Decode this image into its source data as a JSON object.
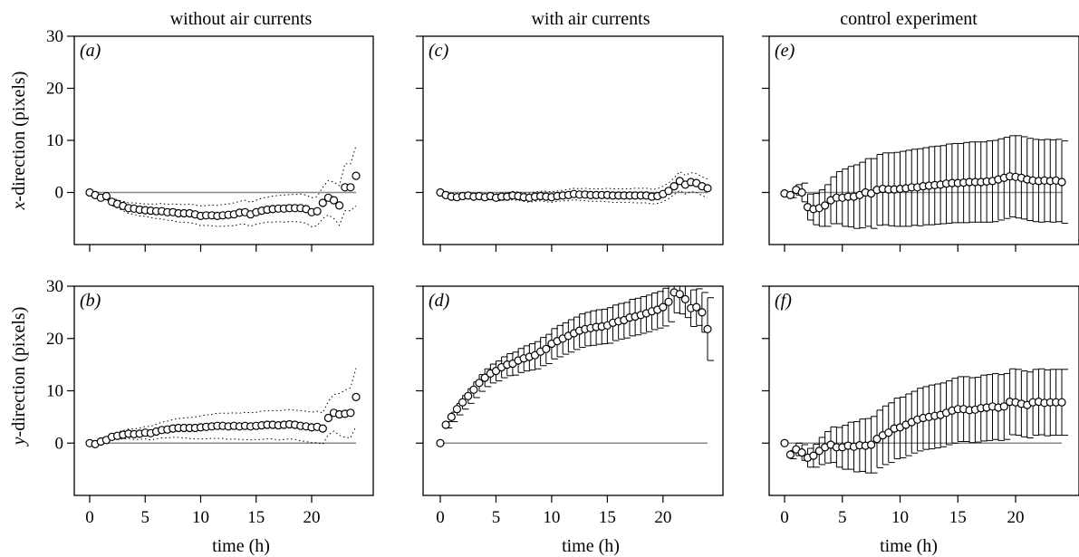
{
  "column_titles": [
    "without air currents",
    "with air currents",
    "control experiment"
  ],
  "y_axis_titles": {
    "top_italic": "x",
    "top_rest": "-direction (pixels)",
    "bottom_italic": "y",
    "bottom_rest": "-direction (pixels)"
  },
  "x_axis_title": "time (h)",
  "colors": {
    "points": "#000000",
    "zero_line": "#888888",
    "frame": "#000000"
  },
  "chart_data": [
    {
      "type": "scatter",
      "panel": "a",
      "row": 0,
      "col": 0,
      "xlim": [
        0,
        24
      ],
      "ylim": [
        -10,
        30
      ],
      "zero_line": true,
      "error_style": "dotted",
      "x": [
        0,
        0.5,
        1,
        1.5,
        2,
        2.5,
        3,
        3.5,
        4,
        4.5,
        5,
        5.5,
        6,
        6.5,
        7,
        7.5,
        8,
        8.5,
        9,
        9.5,
        10,
        10.5,
        11,
        11.5,
        12,
        12.5,
        13,
        13.5,
        14,
        14.5,
        15,
        15.5,
        16,
        16.5,
        17,
        17.5,
        18,
        18.5,
        19,
        19.5,
        20,
        20.5,
        21,
        21.5,
        22,
        22.5,
        23,
        23.5,
        24
      ],
      "y": [
        0,
        -0.5,
        -1,
        -0.7,
        -1.8,
        -2.2,
        -2.6,
        -3,
        -3.1,
        -3.3,
        -3.4,
        -3.5,
        -3.6,
        -3.6,
        -3.8,
        -3.8,
        -4,
        -4,
        -4,
        -4.2,
        -4.5,
        -4.4,
        -4.4,
        -4.5,
        -4.4,
        -4.3,
        -4.2,
        -3.9,
        -3.8,
        -4.2,
        -3.8,
        -3.5,
        -3.3,
        -3.2,
        -3.1,
        -3.1,
        -3,
        -3,
        -3,
        -3.2,
        -3.8,
        -3.6,
        -2,
        -1,
        -1.5,
        -2.5,
        1,
        1,
        3.2
      ],
      "err": [
        0,
        0.3,
        0.4,
        0.5,
        0.7,
        0.8,
        0.9,
        1,
        1.1,
        1.2,
        1.2,
        1.3,
        1.4,
        1.5,
        1.5,
        1.6,
        1.7,
        1.7,
        1.8,
        1.8,
        1.9,
        1.9,
        2,
        2,
        2.1,
        2.1,
        2.2,
        2.2,
        2.3,
        2.3,
        2.3,
        2.4,
        2.4,
        2.5,
        2.5,
        2.6,
        2.6,
        2.6,
        2.7,
        2.7,
        2.8,
        2.8,
        3,
        3.3,
        3.5,
        3.8,
        4.5,
        4.5,
        5.8
      ]
    },
    {
      "type": "scatter",
      "panel": "b",
      "row": 1,
      "col": 0,
      "xlim": [
        0,
        24
      ],
      "ylim": [
        -10,
        30
      ],
      "zero_line": true,
      "error_style": "dotted",
      "x": [
        0,
        0.5,
        1,
        1.5,
        2,
        2.5,
        3,
        3.5,
        4,
        4.5,
        5,
        5.5,
        6,
        6.5,
        7,
        7.5,
        8,
        8.5,
        9,
        9.5,
        10,
        10.5,
        11,
        11.5,
        12,
        12.5,
        13,
        13.5,
        14,
        14.5,
        15,
        15.5,
        16,
        16.5,
        17,
        17.5,
        18,
        18.5,
        19,
        19.5,
        20,
        20.5,
        21,
        21.5,
        22,
        22.5,
        23,
        23.5,
        24
      ],
      "y": [
        0,
        -0.2,
        0.3,
        0.6,
        1.2,
        1.4,
        1.6,
        1.8,
        1.7,
        1.8,
        2,
        1.9,
        2.2,
        2.5,
        2.6,
        2.8,
        2.9,
        2.9,
        2.9,
        2.9,
        3,
        3.1,
        3.2,
        3.3,
        3.3,
        3.2,
        3.3,
        3.2,
        3.3,
        3.2,
        3.3,
        3.4,
        3.5,
        3.5,
        3.4,
        3.5,
        3.6,
        3.5,
        3.3,
        3.2,
        3,
        3.1,
        2.8,
        4.8,
        5.8,
        5.5,
        5.6,
        5.8,
        8.8
      ],
      "err": [
        0,
        0.3,
        0.4,
        0.5,
        0.6,
        0.7,
        0.8,
        0.9,
        1,
        1.1,
        1.2,
        1.3,
        1.4,
        1.5,
        1.6,
        1.7,
        1.8,
        1.9,
        2,
        2.1,
        2.2,
        2.3,
        2.3,
        2.4,
        2.4,
        2.5,
        2.5,
        2.5,
        2.6,
        2.6,
        2.6,
        2.7,
        2.7,
        2.7,
        2.8,
        2.8,
        2.8,
        2.8,
        2.9,
        2.9,
        2.9,
        3,
        3,
        3.2,
        3.5,
        4,
        4.5,
        4.8,
        5.5
      ]
    },
    {
      "type": "scatter",
      "panel": "c",
      "row": 0,
      "col": 1,
      "xlim": [
        0,
        24
      ],
      "ylim": [
        -10,
        30
      ],
      "zero_line": true,
      "error_style": "dotted",
      "x": [
        0,
        0.5,
        1,
        1.5,
        2,
        2.5,
        3,
        3.5,
        4,
        4.5,
        5,
        5.5,
        6,
        6.5,
        7,
        7.5,
        8,
        8.5,
        9,
        9.5,
        10,
        10.5,
        11,
        11.5,
        12,
        12.5,
        13,
        13.5,
        14,
        14.5,
        15,
        15.5,
        16,
        16.5,
        17,
        17.5,
        18,
        18.5,
        19,
        19.5,
        20,
        20.5,
        21,
        21.5,
        22,
        22.5,
        23,
        23.5,
        24
      ],
      "y": [
        0,
        -0.5,
        -0.8,
        -0.9,
        -0.7,
        -0.6,
        -0.8,
        -0.7,
        -0.9,
        -0.7,
        -1,
        -0.8,
        -0.8,
        -0.6,
        -0.7,
        -0.9,
        -1,
        -0.8,
        -0.7,
        -0.8,
        -0.9,
        -0.7,
        -0.6,
        -0.5,
        -0.3,
        -0.4,
        -0.4,
        -0.5,
        -0.5,
        -0.5,
        -0.5,
        -0.6,
        -0.6,
        -0.6,
        -0.6,
        -0.6,
        -0.6,
        -0.6,
        -0.8,
        -0.7,
        -0.3,
        0.3,
        1.2,
        2.2,
        1.5,
        2,
        1.8,
        1.2,
        0.8
      ],
      "err": [
        0,
        0.3,
        0.4,
        0.4,
        0.5,
        0.5,
        0.5,
        0.6,
        0.6,
        0.6,
        0.7,
        0.7,
        0.7,
        0.8,
        0.8,
        0.8,
        0.9,
        0.9,
        0.9,
        1,
        1,
        1,
        1,
        1.1,
        1.1,
        1.1,
        1.2,
        1.2,
        1.2,
        1.2,
        1.3,
        1.3,
        1.3,
        1.3,
        1.3,
        1.4,
        1.4,
        1.4,
        1.4,
        1.4,
        1.5,
        1.5,
        1.6,
        1.8,
        1.8,
        1.8,
        1.8,
        1.8,
        1.8
      ]
    },
    {
      "type": "scatter",
      "panel": "d",
      "row": 1,
      "col": 1,
      "xlim": [
        0,
        24
      ],
      "ylim": [
        -10,
        30
      ],
      "zero_line": true,
      "error_style": "whisker",
      "x": [
        0,
        0.5,
        1,
        1.5,
        2,
        2.5,
        3,
        3.5,
        4,
        4.5,
        5,
        5.5,
        6,
        6.5,
        7,
        7.5,
        8,
        8.5,
        9,
        9.5,
        10,
        10.5,
        11,
        11.5,
        12,
        12.5,
        13,
        13.5,
        14,
        14.5,
        15,
        15.5,
        16,
        16.5,
        17,
        17.5,
        18,
        18.5,
        19,
        19.5,
        20,
        20.5,
        21,
        21.5,
        22,
        22.5,
        23,
        23.5,
        24
      ],
      "y": [
        0,
        3.5,
        5,
        6.5,
        7.8,
        9,
        10.2,
        11.5,
        12.5,
        13.3,
        13.8,
        14.5,
        15,
        15.2,
        15.8,
        16.2,
        16.5,
        16.8,
        17.5,
        18,
        19,
        19.5,
        20,
        20.5,
        21,
        21.5,
        21.8,
        22,
        22.2,
        22.3,
        22.5,
        23,
        23.3,
        23.5,
        24,
        24.2,
        24.5,
        24.8,
        25.2,
        25.5,
        26,
        27,
        28.8,
        28.5,
        27.5,
        25.8,
        26,
        25,
        21.8
      ],
      "err": [
        0,
        0.6,
        0.9,
        1.1,
        1.3,
        1.4,
        1.5,
        1.6,
        1.7,
        1.8,
        1.9,
        2,
        2.1,
        2.2,
        2.3,
        2.4,
        2.5,
        2.6,
        2.7,
        2.8,
        2.9,
        3,
        3,
        3.1,
        3.1,
        3.2,
        3.2,
        3.3,
        3.3,
        3.3,
        3.4,
        3.4,
        3.4,
        3.4,
        3.5,
        3.5,
        3.5,
        3.5,
        3.5,
        3.5,
        3.6,
        3.8,
        3.9,
        3.8,
        3.5,
        3.5,
        3.5,
        3.8,
        6
      ]
    },
    {
      "type": "scatter",
      "panel": "e",
      "row": 0,
      "col": 2,
      "xlim": [
        0,
        24
      ],
      "ylim": [
        -10,
        30
      ],
      "zero_line": true,
      "error_style": "whisker",
      "x": [
        0,
        0.5,
        1,
        1.5,
        2,
        2.5,
        3,
        3.5,
        4,
        4.5,
        5,
        5.5,
        6,
        6.5,
        7,
        7.5,
        8,
        8.5,
        9,
        9.5,
        10,
        10.5,
        11,
        11.5,
        12,
        12.5,
        13,
        13.5,
        14,
        14.5,
        15,
        15.5,
        16,
        16.5,
        17,
        17.5,
        18,
        18.5,
        19,
        19.5,
        20,
        20.5,
        21,
        21.5,
        22,
        22.5,
        23,
        23.5,
        24
      ],
      "y": [
        -0.2,
        -0.5,
        0.5,
        0,
        -2.8,
        -3.2,
        -3,
        -2.5,
        -1.5,
        -1,
        -1,
        -0.8,
        -0.8,
        -0.5,
        0,
        -0.2,
        0.5,
        0.7,
        0.6,
        0.6,
        0.7,
        0.8,
        1,
        1,
        1.2,
        1.3,
        1.4,
        1.5,
        1.7,
        1.8,
        1.8,
        1.9,
        2,
        2,
        2,
        2.1,
        2.2,
        2.5,
        2.8,
        3.1,
        3,
        2.8,
        2.5,
        2.3,
        2.2,
        2.3,
        2.2,
        2.3,
        2
      ],
      "err": [
        0,
        0.5,
        1,
        1.8,
        2.5,
        3,
        3.5,
        4,
        4.5,
        5,
        5.5,
        5.8,
        6.1,
        6.3,
        6.5,
        6.7,
        6.8,
        6.9,
        7,
        7.1,
        7.2,
        7.3,
        7.3,
        7.4,
        7.4,
        7.5,
        7.5,
        7.5,
        7.6,
        7.6,
        7.6,
        7.7,
        7.7,
        7.7,
        7.7,
        7.8,
        7.8,
        7.8,
        7.8,
        7.8,
        7.9,
        7.9,
        7.9,
        7.9,
        7.9,
        7.9,
        7.9,
        7.9,
        7.9
      ]
    },
    {
      "type": "scatter",
      "panel": "f",
      "row": 1,
      "col": 2,
      "xlim": [
        0,
        24
      ],
      "ylim": [
        -10,
        30
      ],
      "zero_line": true,
      "error_style": "whisker",
      "x": [
        0,
        0.5,
        1,
        1.5,
        2,
        2.5,
        3,
        3.5,
        4,
        4.5,
        5,
        5.5,
        6,
        6.5,
        7,
        7.5,
        8,
        8.5,
        9,
        9.5,
        10,
        10.5,
        11,
        11.5,
        12,
        12.5,
        13,
        13.5,
        14,
        14.5,
        15,
        15.5,
        16,
        16.5,
        17,
        17.5,
        18,
        18.5,
        19,
        19.5,
        20,
        20.5,
        21,
        21.5,
        22,
        22.5,
        23,
        23.5,
        24
      ],
      "y": [
        0,
        -2.2,
        -1.2,
        -1.8,
        -2.8,
        -2.4,
        -1.5,
        -0.8,
        -0.3,
        -0.8,
        -0.8,
        -0.5,
        -0.7,
        -0.4,
        -0.5,
        -0.3,
        0.8,
        1.5,
        2,
        2.8,
        3,
        3.5,
        4,
        4.5,
        4.8,
        5,
        5.2,
        5.4,
        5.8,
        6.2,
        6.5,
        6.5,
        6.3,
        6.4,
        6.7,
        6.8,
        7,
        6.8,
        7,
        7.9,
        7.8,
        7.5,
        7.3,
        7.8,
        7.9,
        7.7,
        7.8,
        7.8,
        7.8
      ],
      "err": [
        0,
        0.8,
        1.2,
        1.5,
        1.8,
        2.2,
        2.6,
        3,
        3.4,
        3.8,
        4.2,
        4.5,
        4.8,
        5,
        5.2,
        5.4,
        5.5,
        5.6,
        5.7,
        5.8,
        5.8,
        5.9,
        5.9,
        6,
        6,
        6.1,
        6.1,
        6.1,
        6.1,
        6.2,
        6.2,
        6.2,
        6.2,
        6.2,
        6.3,
        6.3,
        6.3,
        6.3,
        6.3,
        6.3,
        6.3,
        6.3,
        6.3,
        6.3,
        6.3,
        6.3,
        6.3,
        6.3,
        6.3
      ]
    }
  ]
}
